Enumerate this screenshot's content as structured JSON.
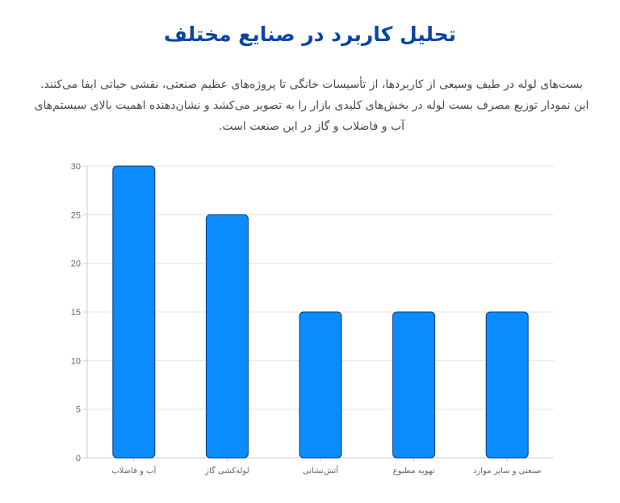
{
  "header": {
    "title": "تحلیل کاربرد در صنایع مختلف",
    "description": "بست‌های لوله در طیف وسیعی از کاربردها، از تأسیسات خانگی تا پروژه‌های عظیم صنعتی، نقشی حیاتی ایفا می‌کنند. این نمودار توزیع مصرف بست لوله در بخش‌های کلیدی بازار را به تصویر می‌کشد و نشان‌دهنده اهمیت بالای سیستم‌های آب و فاضلاب و گاز در این صنعت است."
  },
  "colors": {
    "title": "#0a47a3",
    "bar_fill": "#0a8cff",
    "bar_stroke": "#0b3a7a",
    "grid": "#e3e3e3",
    "axis": "#cccccc",
    "text": "#666666"
  },
  "chart_data": {
    "type": "bar",
    "categories": [
      "آب و فاضلاب",
      "لوله‌کشی گاز",
      "آتش‌نشانی",
      "تهویه مطبوع",
      "صنعتی و سایر موارد"
    ],
    "values": [
      30,
      25,
      15,
      15,
      15
    ],
    "ylim": [
      0,
      30
    ],
    "yticks": [
      0,
      5,
      10,
      15,
      20,
      25,
      30
    ],
    "grid": true,
    "legend": "none"
  }
}
